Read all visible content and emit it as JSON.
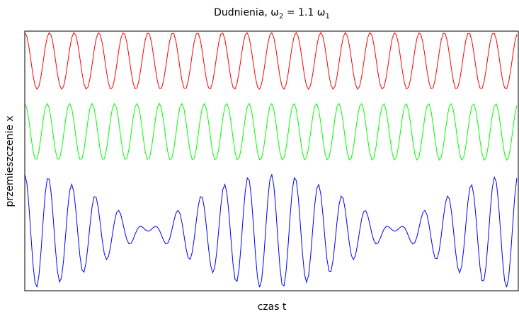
{
  "chart_data": {
    "type": "line",
    "title": {
      "main": "Dudnienia, ω",
      "sub1": "2",
      "mid": " = 1.1 ω",
      "sub2": "1"
    },
    "xlabel": "czas t",
    "ylabel": "przemieszczenie x",
    "x_ticks_shown": false,
    "y_ticks_shown": false,
    "grid": false,
    "omega_ratio": 1.1,
    "x_range": [
      0,
      125.7
    ],
    "series": [
      {
        "color": "#ff0000",
        "role": "oscillation with omega_1",
        "omega": 1.0,
        "amplitude": 1,
        "offset": 4,
        "phase": 0
      },
      {
        "color": "#00ff00",
        "role": "oscillation with omega_2",
        "omega": 1.1,
        "amplitude": 1,
        "offset": 1.5,
        "phase": 0
      },
      {
        "color": "#0000ff",
        "role": "sum of both oscillations",
        "omega": [
          1.0,
          1.1
        ],
        "amplitude": 1,
        "offset": -2,
        "phase": 0
      }
    ],
    "ylim": [
      -4.1,
      5.05
    ],
    "sample_step": 0.52
  }
}
